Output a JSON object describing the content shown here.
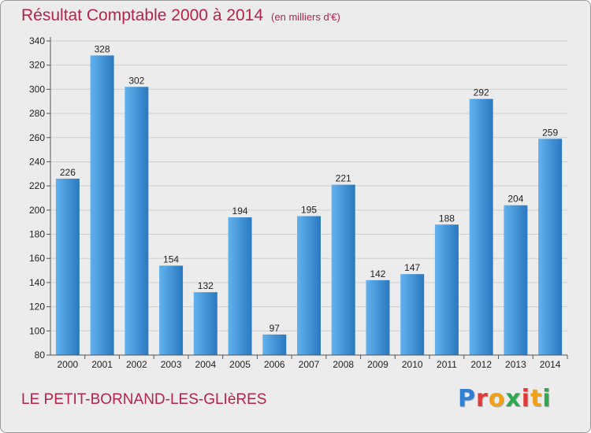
{
  "header": {
    "title": "Résultat Comptable 2000 à 2014",
    "subtitle": "(en milliers d'€)"
  },
  "footer": {
    "commune": "LE PETIT-BORNAND-LES-GLIèRES",
    "logo_letters": [
      "P",
      "r",
      "o",
      "x",
      "i",
      "t",
      "i"
    ],
    "logo_colors": [
      "#2f7fd3",
      "#e23a3a",
      "#f0a11a",
      "#2fa84f",
      "#e23a3a",
      "#f0a11a",
      "#2fa84f"
    ]
  },
  "colors": {
    "bar_light": "#62b2ee",
    "bar_dark": "#2a78c0",
    "grid": "#cfcfcf"
  },
  "chart_data": {
    "type": "bar",
    "categories": [
      "2000",
      "2001",
      "2002",
      "2003",
      "2004",
      "2005",
      "2006",
      "2007",
      "2008",
      "2009",
      "2010",
      "2011",
      "2012",
      "2013",
      "2014"
    ],
    "values": [
      226,
      328,
      302,
      154,
      132,
      194,
      97,
      195,
      221,
      142,
      147,
      188,
      292,
      204,
      259
    ],
    "yticks": [
      80,
      100,
      120,
      140,
      160,
      180,
      200,
      220,
      240,
      260,
      280,
      300,
      320,
      340
    ],
    "ylim": [
      80,
      340
    ],
    "grid": true
  }
}
